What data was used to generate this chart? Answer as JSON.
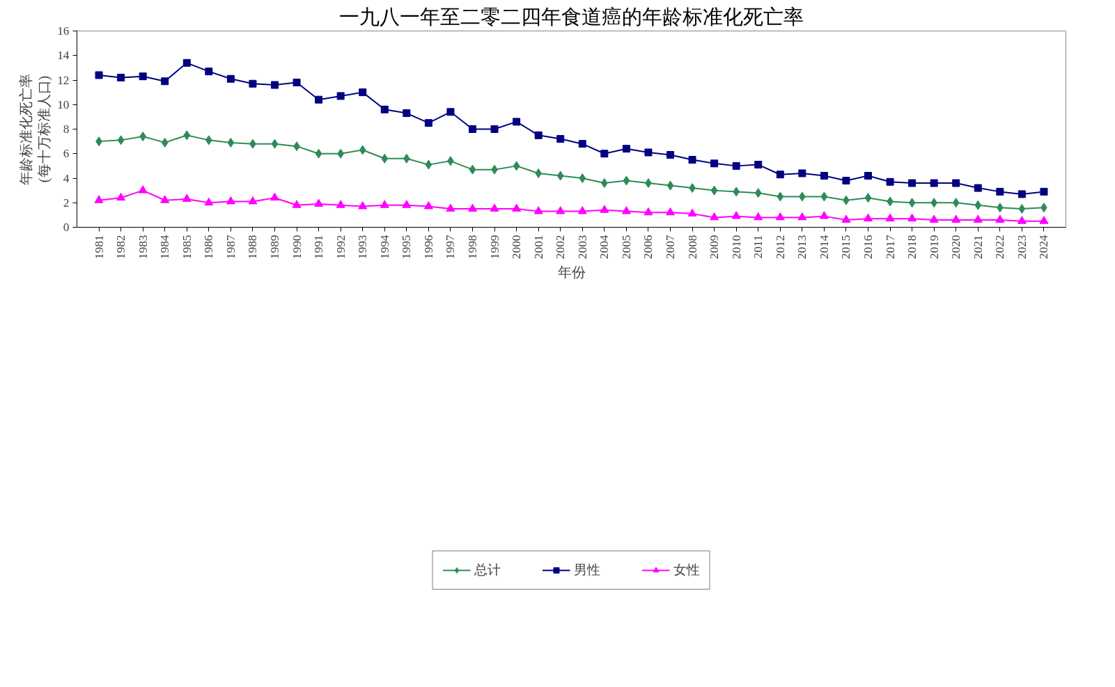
{
  "chart_data": {
    "type": "line",
    "title": "一九八一年至二零二四年食道癌的年龄标准化死亡率",
    "xlabel": "年份",
    "ylabel": "年龄标准化死亡率\n(每十万标准人口)",
    "categories": [
      "1981",
      "1982",
      "1983",
      "1984",
      "1985",
      "1986",
      "1987",
      "1988",
      "1989",
      "1990",
      "1991",
      "1992",
      "1993",
      "1994",
      "1995",
      "1996",
      "1997",
      "1998",
      "1999",
      "2000",
      "2001",
      "2002",
      "2003",
      "2004",
      "2005",
      "2006",
      "2007",
      "2008",
      "2009",
      "2010",
      "2011",
      "2012",
      "2013",
      "2014",
      "2015",
      "2016",
      "2017",
      "2018",
      "2019",
      "2020",
      "2021",
      "2022",
      "2023",
      "2024"
    ],
    "series": [
      {
        "name": "总计",
        "color": "#2e8b57",
        "marker": "diamond",
        "values": [
          7.0,
          7.1,
          7.4,
          6.9,
          7.5,
          7.1,
          6.9,
          6.8,
          6.8,
          6.6,
          6.0,
          6.0,
          6.3,
          5.6,
          5.6,
          5.1,
          5.4,
          4.7,
          4.7,
          5.0,
          4.4,
          4.2,
          4.0,
          3.6,
          3.8,
          3.6,
          3.4,
          3.2,
          3.0,
          2.9,
          2.8,
          2.5,
          2.5,
          2.5,
          2.2,
          2.4,
          2.1,
          2.0,
          2.0,
          2.0,
          1.8,
          1.6,
          1.5,
          1.6
        ]
      },
      {
        "name": "男性",
        "color": "#000080",
        "marker": "square",
        "values": [
          12.4,
          12.2,
          12.3,
          11.9,
          13.4,
          12.7,
          12.1,
          11.7,
          11.6,
          11.8,
          10.4,
          10.7,
          11.0,
          9.6,
          9.3,
          8.5,
          9.4,
          8.0,
          8.0,
          8.6,
          7.5,
          7.2,
          6.8,
          6.0,
          6.4,
          6.1,
          5.9,
          5.5,
          5.2,
          5.0,
          5.1,
          4.3,
          4.4,
          4.2,
          3.8,
          4.2,
          3.7,
          3.6,
          3.6,
          3.6,
          3.2,
          2.9,
          2.7,
          2.9
        ]
      },
      {
        "name": "女性",
        "color": "#ff00ff",
        "marker": "triangle",
        "values": [
          2.2,
          2.4,
          3.0,
          2.2,
          2.3,
          2.0,
          2.1,
          2.1,
          2.4,
          1.8,
          1.9,
          1.8,
          1.7,
          1.8,
          1.8,
          1.7,
          1.5,
          1.5,
          1.5,
          1.5,
          1.3,
          1.3,
          1.3,
          1.4,
          1.3,
          1.2,
          1.2,
          1.1,
          0.8,
          0.9,
          0.8,
          0.8,
          0.8,
          0.9,
          0.6,
          0.7,
          0.7,
          0.7,
          0.6,
          0.6,
          0.6,
          0.6,
          0.5,
          0.5
        ]
      }
    ],
    "ylim": [
      0,
      16
    ],
    "yticks": [
      0,
      2,
      4,
      6,
      8,
      10,
      12,
      14,
      16
    ],
    "grid": false,
    "legend": "bottom",
    "line_style": "solid"
  }
}
